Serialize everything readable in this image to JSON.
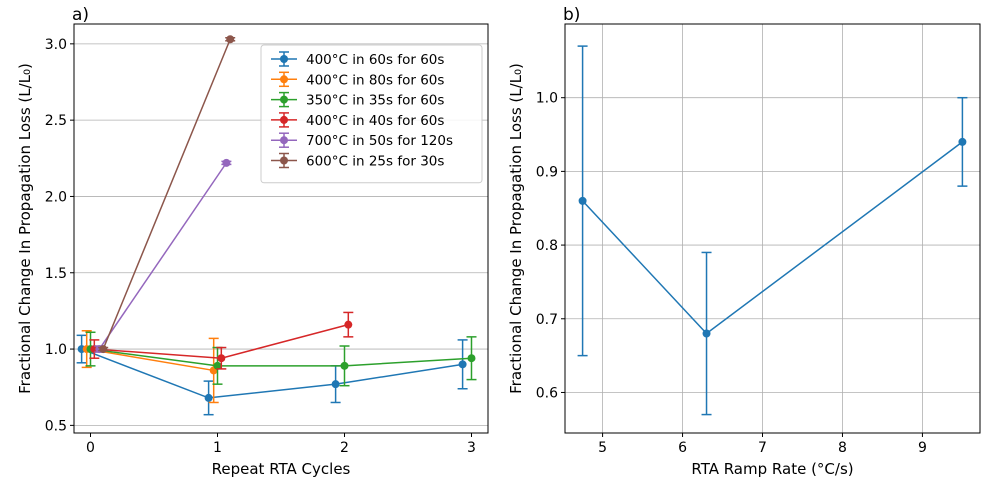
{
  "chart_data": [
    {
      "type": "line",
      "panel_label": "a)",
      "xlabel": "Repeat RTA Cycles",
      "ylabel": "Fractional Change In Propagation Loss (L/L₀)",
      "xlim": [
        -0.13,
        3.13
      ],
      "ylim": [
        0.45,
        3.13
      ],
      "xticks": [
        0,
        1,
        2,
        3
      ],
      "xtick_labels": [
        "0",
        "1",
        "2",
        "3"
      ],
      "yticks": [
        0.5,
        1.0,
        1.5,
        2.0,
        2.5,
        3.0
      ],
      "ytick_labels": [
        "0.5",
        "1.0",
        "1.5",
        "2.0",
        "2.5",
        "3.0"
      ],
      "grid": "horizontal",
      "legend_position": "top-right",
      "series": [
        {
          "name": "400°C in 60s for 60s",
          "color": "#1f77b4",
          "x": [
            -0.07,
            0.93,
            1.93,
            2.93
          ],
          "y": [
            1.0,
            0.68,
            0.77,
            0.9
          ],
          "err": [
            0.09,
            0.11,
            0.12,
            0.16
          ]
        },
        {
          "name": "400°C in 80s for 60s",
          "color": "#ff7f0e",
          "x": [
            -0.03,
            0.97
          ],
          "y": [
            1.0,
            0.86
          ],
          "err": [
            0.12,
            0.21
          ]
        },
        {
          "name": "350°C in 35s for 60s",
          "color": "#2ca02c",
          "x": [
            0.0,
            1.0,
            2.0,
            3.0
          ],
          "y": [
            1.0,
            0.89,
            0.89,
            0.94
          ],
          "err": [
            0.11,
            0.12,
            0.13,
            0.14
          ]
        },
        {
          "name": "400°C in 40s for 60s",
          "color": "#d62728",
          "x": [
            0.03,
            1.03,
            2.03
          ],
          "y": [
            1.0,
            0.94,
            1.16
          ],
          "err": [
            0.06,
            0.07,
            0.08
          ]
        },
        {
          "name": "700°C in 50s for 120s",
          "color": "#9467bd",
          "x": [
            0.07,
            1.07
          ],
          "y": [
            1.0,
            2.22
          ],
          "err": [
            0.02,
            0.01
          ]
        },
        {
          "name": "600°C in 25s for 30s",
          "color": "#8c564b",
          "x": [
            0.1,
            1.1
          ],
          "y": [
            1.0,
            3.03
          ],
          "err": [
            0.01,
            0.01
          ]
        }
      ]
    },
    {
      "type": "line",
      "panel_label": "b)",
      "xlabel": "RTA Ramp Rate (°C/s)",
      "ylabel": "Fractional Change In Propagation Loss (L/L₀)",
      "xlim": [
        4.53,
        9.72
      ],
      "ylim": [
        0.545,
        1.1
      ],
      "xticks": [
        5,
        6,
        7,
        8,
        9
      ],
      "xtick_labels": [
        "5",
        "6",
        "7",
        "8",
        "9"
      ],
      "yticks": [
        0.6,
        0.7,
        0.8,
        0.9,
        1.0
      ],
      "ytick_labels": [
        "0.6",
        "0.7",
        "0.8",
        "0.9",
        "1.0"
      ],
      "grid": "both",
      "series": [
        {
          "name": "",
          "color": "#1f77b4",
          "x": [
            4.75,
            6.3,
            9.5
          ],
          "y": [
            0.86,
            0.68,
            0.94
          ],
          "err": [
            0.21,
            0.11,
            0.06
          ]
        }
      ]
    }
  ]
}
